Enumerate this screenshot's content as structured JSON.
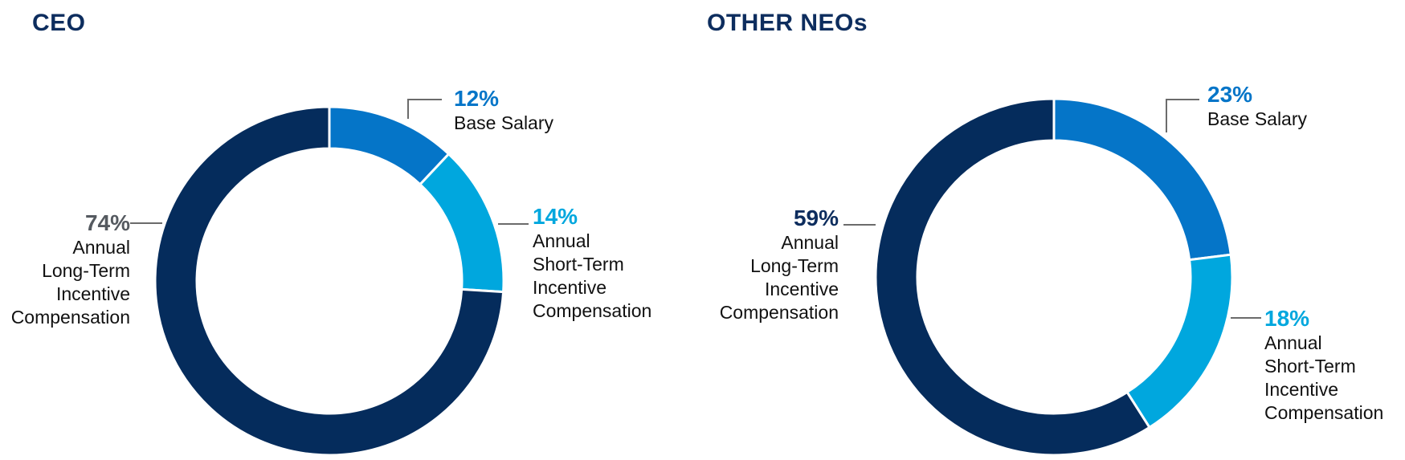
{
  "colors": {
    "title": "#0d2d5e",
    "base_salary_ceo": "#0575c8",
    "base_salary_neo": "#0575c8",
    "short_term": "#00a7de",
    "long_term": "#052c5c",
    "ceo_lt_pct_text": "#555a60",
    "neo_lt_pct_text": "#0d2d5e"
  },
  "chart_data": [
    {
      "type": "pie",
      "title": "CEO",
      "donut": true,
      "slices": [
        {
          "label": "Base Salary",
          "value": 12,
          "pct_text": "12%",
          "color": "#0575c8"
        },
        {
          "label": "Annual Short-Term Incentive Compensation",
          "value": 14,
          "pct_text": "14%",
          "color": "#00a7de"
        },
        {
          "label": "Annual Long-Term Incentive Compensation",
          "value": 74,
          "pct_text": "74%",
          "color": "#052c5c"
        }
      ],
      "label_lines": {
        "base": [
          "Base Salary"
        ],
        "short": [
          "Annual",
          "Short-Term",
          "Incentive",
          "Compensation"
        ],
        "long": [
          "Annual",
          "Long-Term",
          "Incentive",
          "Compensation"
        ]
      }
    },
    {
      "type": "pie",
      "title": "OTHER NEOs",
      "donut": true,
      "slices": [
        {
          "label": "Base Salary",
          "value": 23,
          "pct_text": "23%",
          "color": "#0575c8"
        },
        {
          "label": "Annual Short-Term Incentive Compensation",
          "value": 18,
          "pct_text": "18%",
          "color": "#00a7de"
        },
        {
          "label": "Annual Long-Term Incentive Compensation",
          "value": 59,
          "pct_text": "59%",
          "color": "#052c5c"
        }
      ],
      "label_lines": {
        "base": [
          "Base Salary"
        ],
        "short": [
          "Annual",
          "Short-Term",
          "Incentive",
          "Compensation"
        ],
        "long": [
          "Annual",
          "Long-Term",
          "Incentive",
          "Compensation"
        ]
      }
    }
  ]
}
